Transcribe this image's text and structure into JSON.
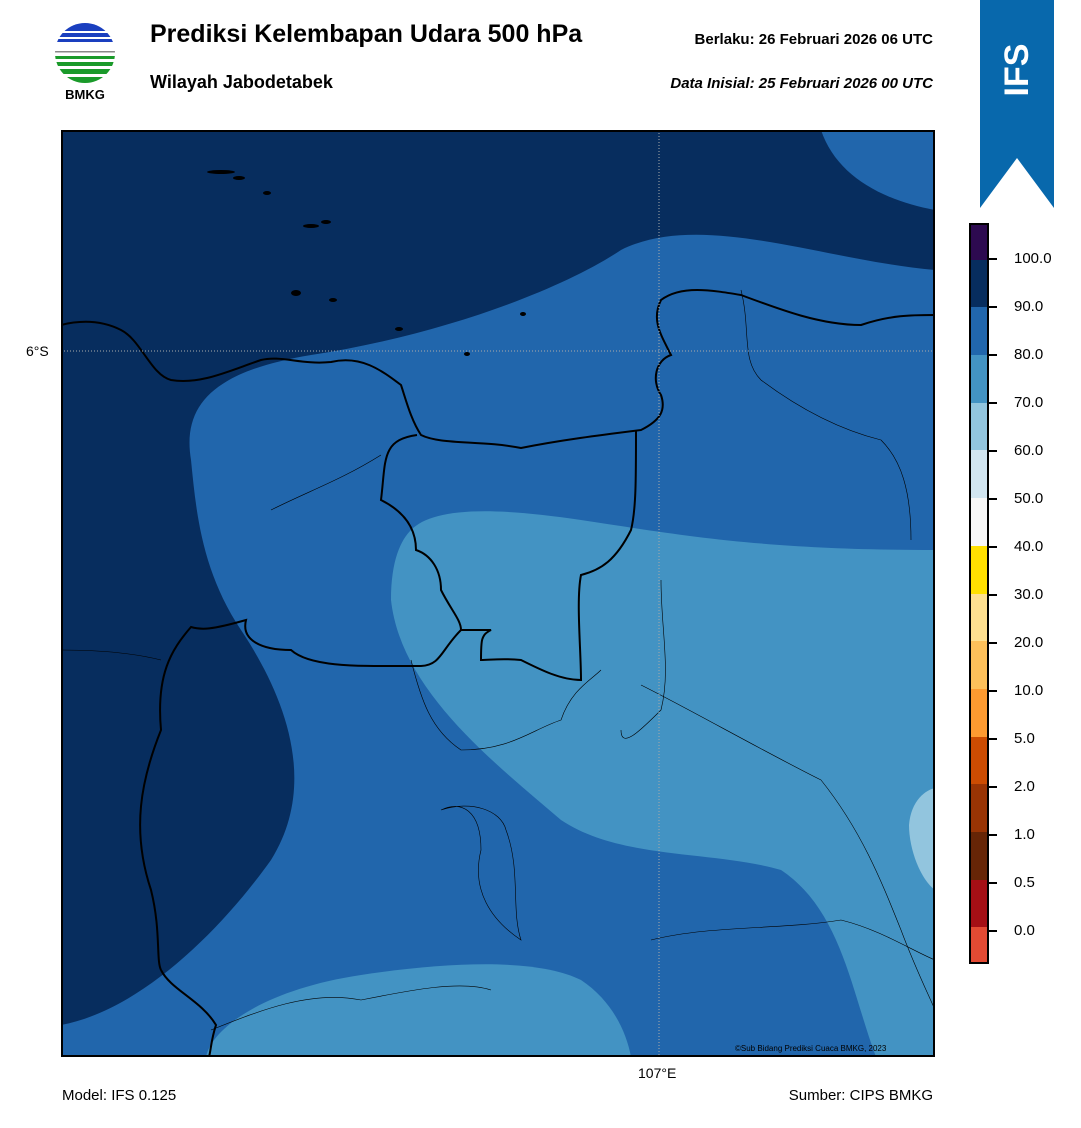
{
  "header": {
    "title": "Prediksi Kelembapan Udara 500 hPa",
    "subtitle": "Wilayah Jabodetabek",
    "valid": "Berlaku:  26 Februari 2026 06 UTC",
    "init": "Data Inisial:  25 Februari 2026 00 UTC"
  },
  "logo": {
    "text": "BMKG"
  },
  "badge": {
    "text": "IFS",
    "color": "#0868ac"
  },
  "map": {
    "lat_label": "6°S",
    "lon_label": "107°E",
    "copyright": "©Sub Bidang Prediksi Cuaca BMKG, 2023"
  },
  "footer": {
    "model": "Model: IFS 0.125",
    "source": "Sumber: CIPS BMKG"
  },
  "colorbar": {
    "colors": [
      "#2d0a50",
      "#072d5e",
      "#2166ac",
      "#4393c3",
      "#92c5de",
      "#d1e5f0",
      "#f7f7f7",
      "#ffe000",
      "#fee090",
      "#fdc05a",
      "#fd9a30",
      "#cc4c02",
      "#993404",
      "#662506",
      "#a50f15",
      "#e34a33"
    ],
    "labels": [
      "100.0",
      "90.0",
      "80.0",
      "70.0",
      "60.0",
      "50.0",
      "40.0",
      "30.0",
      "20.0",
      "10.0",
      "5.0",
      "2.0",
      "1.0",
      "0.5",
      "0.0"
    ]
  }
}
